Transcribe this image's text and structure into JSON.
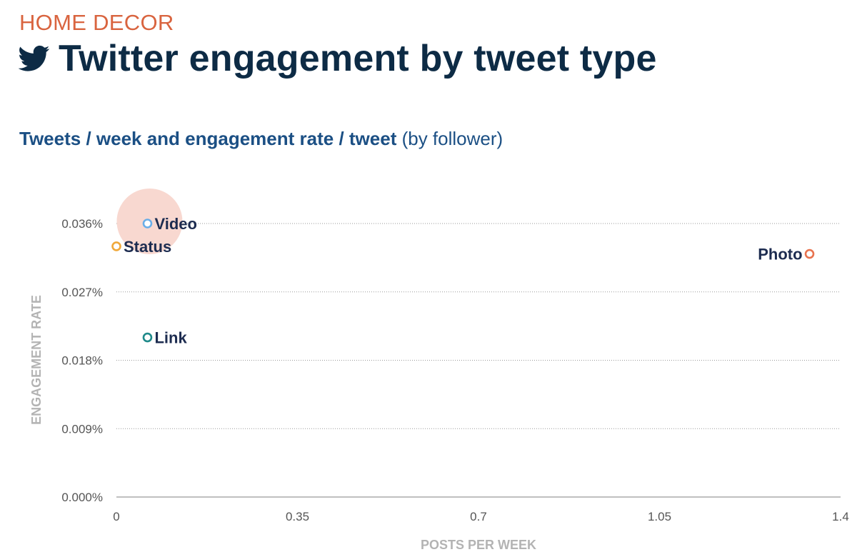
{
  "header": {
    "category": "HOME DECOR",
    "title": "Twitter engagement by tweet type",
    "subtitle_bold": "Tweets / week and engagement rate / tweet",
    "subtitle_rest": " (by follower)"
  },
  "chart_data": {
    "type": "scatter",
    "xlabel": "POSTS PER WEEK",
    "ylabel": "ENGAGEMENT RATE",
    "xlim": [
      0,
      1.4
    ],
    "ylim": [
      0,
      0.036
    ],
    "x_ticks": [
      {
        "value": 0,
        "label": "0"
      },
      {
        "value": 0.35,
        "label": "0.35"
      },
      {
        "value": 0.7,
        "label": "0.7"
      },
      {
        "value": 1.05,
        "label": "1.05"
      },
      {
        "value": 1.4,
        "label": "1.4"
      }
    ],
    "y_ticks": [
      {
        "value": 0,
        "label": "0.000%"
      },
      {
        "value": 0.009,
        "label": "0.009%"
      },
      {
        "value": 0.018,
        "label": "0.018%"
      },
      {
        "value": 0.027,
        "label": "0.027%"
      },
      {
        "value": 0.036,
        "label": "0.036%"
      }
    ],
    "grid": "horizontal dotted",
    "points": [
      {
        "label": "Video",
        "x": 0.06,
        "y": 0.036,
        "color": "#6aaee8",
        "label_side": "right",
        "highlight": true
      },
      {
        "label": "Status",
        "x": 0.0,
        "y": 0.033,
        "color": "#f0a83a",
        "label_side": "right",
        "highlight": false
      },
      {
        "label": "Photo",
        "x": 1.34,
        "y": 0.032,
        "color": "#e8734f",
        "label_side": "left",
        "highlight": false
      },
      {
        "label": "Link",
        "x": 0.06,
        "y": 0.021,
        "color": "#1f8a8a",
        "label_side": "right",
        "highlight": false
      }
    ],
    "highlight_color": "#f8d8d0"
  }
}
